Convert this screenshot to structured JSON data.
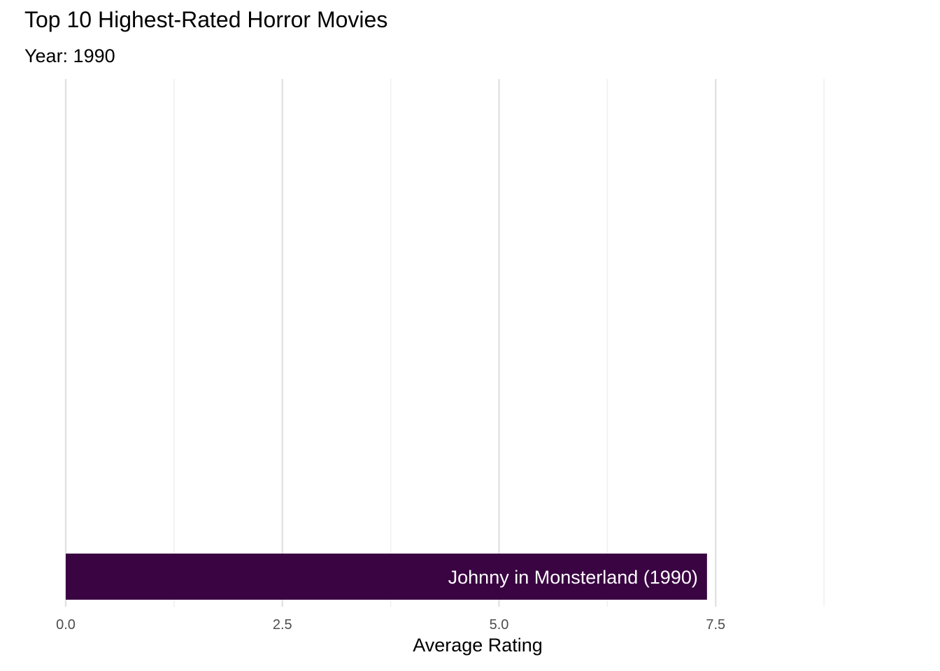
{
  "chart_data": {
    "type": "bar",
    "orientation": "horizontal",
    "title": "Top 10 Highest-Rated Horror Movies",
    "subtitle": "Year: 1990",
    "xlabel": "Average Rating",
    "ylabel": "",
    "xlim": [
      0,
      9.1
    ],
    "x_ticks": [
      "0.0",
      "2.5",
      "5.0",
      "7.5"
    ],
    "x_tick_values": [
      0,
      2.5,
      5,
      7.5
    ],
    "minor_grid_values": [
      1.25,
      3.75,
      6.25,
      8.75
    ],
    "grid": true,
    "legend": "none",
    "categories": [
      "Johnny in Monsterland (1990)"
    ],
    "values": [
      7.4
    ],
    "colors": {
      "bar": "#3A0342",
      "bar_label": "#FFFFFF",
      "grid_major": "#E3E3E3",
      "grid_minor": "#EFEFEF",
      "tick_text": "#4D4D4D"
    }
  }
}
